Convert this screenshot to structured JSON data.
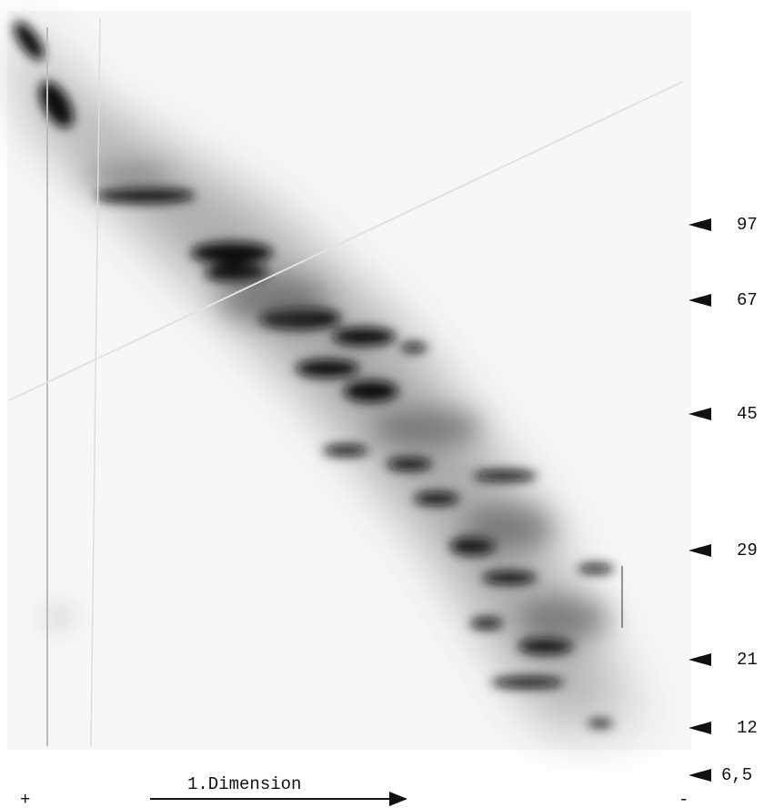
{
  "markers": [
    "97",
    "67",
    "45",
    "29",
    "21",
    "12",
    "6,5"
  ],
  "axis": {
    "label": "1.Dimension",
    "left_end": "+",
    "right_end": "-"
  }
}
